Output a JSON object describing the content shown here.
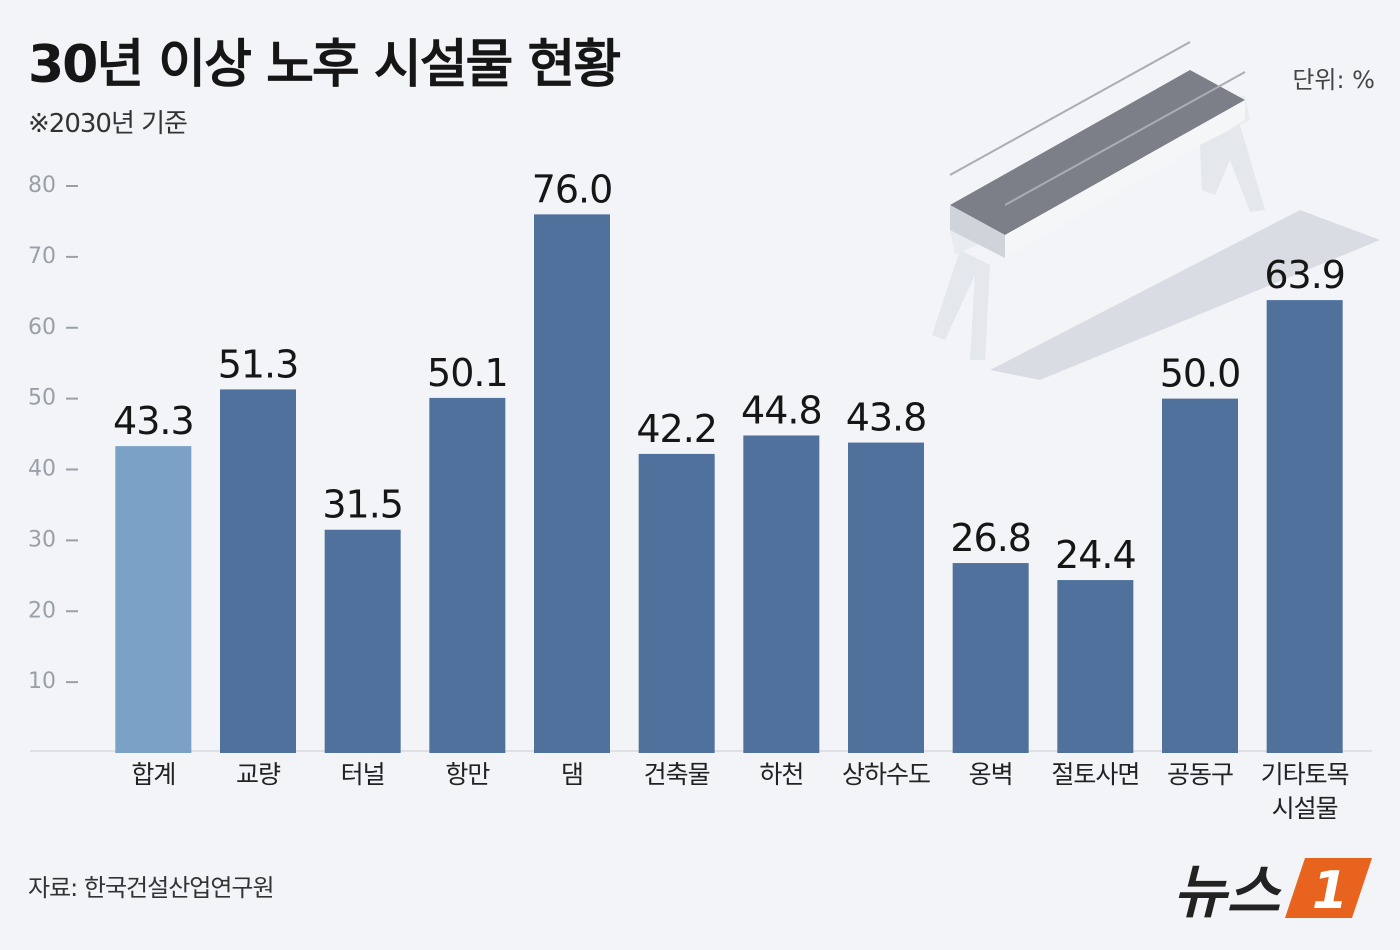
{
  "chart_data": {
    "type": "bar",
    "title": "30년 이상 노후 시설물 현황",
    "subtitle": "※2030년 기준",
    "unit_label": "단위: %",
    "source": "자료: 한국건설산업연구원",
    "logo": {
      "text": "뉴스",
      "mark": "1"
    },
    "categories": [
      "합계",
      "교량",
      "터널",
      "항만",
      "댐",
      "건축물",
      "하천",
      "상하수도",
      "옹벽",
      "절토사면",
      "공동구",
      "기타토목\n시설물"
    ],
    "values": [
      43.3,
      51.3,
      31.5,
      50.1,
      76.0,
      42.2,
      44.8,
      43.8,
      26.8,
      24.4,
      50.0,
      63.9
    ],
    "value_labels": [
      "43.3",
      "51.3",
      "31.5",
      "50.1",
      "76.0",
      "42.2",
      "44.8",
      "43.8",
      "26.8",
      "24.4",
      "50.0",
      "63.9"
    ],
    "colors": [
      "#7ba1c7",
      "#4f719c",
      "#4f719c",
      "#4f719c",
      "#4f719c",
      "#4f719c",
      "#4f719c",
      "#4f719c",
      "#4f719c",
      "#4f719c",
      "#4f719c",
      "#4f719c"
    ],
    "ylim": [
      0,
      80
    ],
    "yticks": [
      10,
      20,
      30,
      40,
      50,
      60,
      70,
      80
    ],
    "grid": false
  }
}
